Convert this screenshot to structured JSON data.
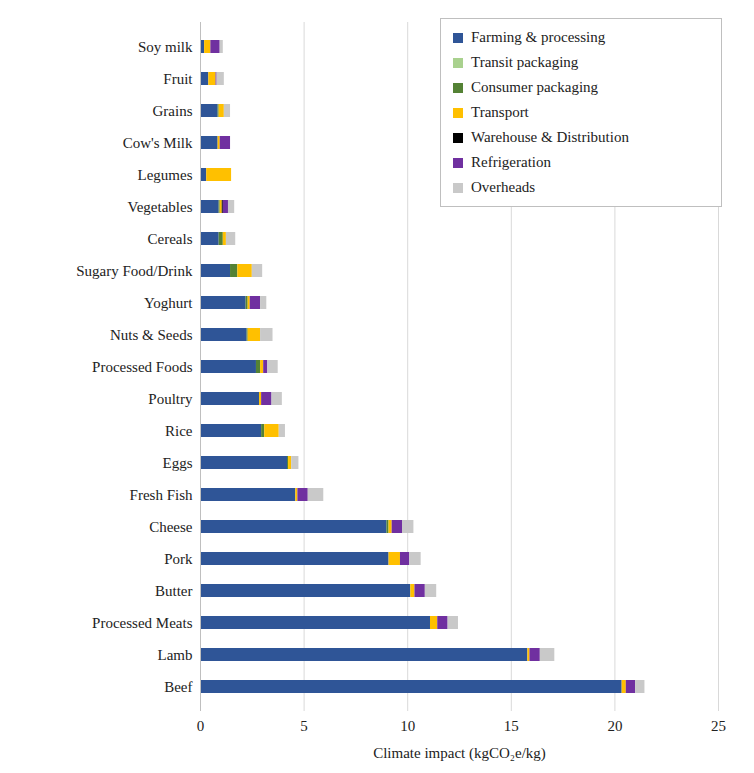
{
  "chart_data": {
    "type": "bar",
    "orientation": "horizontal",
    "stacked": true,
    "grid": true,
    "legend": "top-right",
    "x_label": "Climate impact (kgCO₂e/kg)",
    "xlim": [
      0,
      25
    ],
    "xticks": [
      0,
      5,
      10,
      15,
      20,
      25
    ],
    "categories": [
      "Soy milk",
      "Fruit",
      "Grains",
      "Cow's Milk",
      "Legumes",
      "Vegetables",
      "Cereals",
      "Sugary Food/Drink",
      "Yoghurt",
      "Nuts & Seeds",
      "Processed Foods",
      "Poultry",
      "Rice",
      "Eggs",
      "Fresh Fish",
      "Cheese",
      "Pork",
      "Butter",
      "Processed Meats",
      "Lamb",
      "Beef"
    ],
    "series": [
      {
        "name": "Farming & processing",
        "color": "#2f5597",
        "values": [
          0.2,
          0.4,
          0.85,
          0.85,
          0.3,
          0.9,
          0.9,
          1.45,
          2.2,
          2.25,
          2.7,
          2.85,
          2.95,
          4.2,
          4.6,
          9.0,
          9.1,
          10.15,
          11.1,
          15.8,
          20.35
        ]
      },
      {
        "name": "Transit packaging",
        "color": "#a9d18e",
        "values": [
          0,
          0,
          0,
          0,
          0,
          0,
          0,
          0,
          0,
          0,
          0,
          0,
          0,
          0,
          0,
          0,
          0,
          0,
          0,
          0,
          0
        ]
      },
      {
        "name": "Consumer packaging",
        "color": "#548235",
        "values": [
          0,
          0,
          0.05,
          0,
          0,
          0.05,
          0.2,
          0.35,
          0.1,
          0.05,
          0.2,
          0,
          0.15,
          0.05,
          0,
          0.1,
          0,
          0,
          0,
          0,
          0
        ]
      },
      {
        "name": "Transport",
        "color": "#ffc000",
        "values": [
          0.3,
          0.35,
          0.25,
          0.1,
          1.2,
          0.1,
          0.15,
          0.7,
          0.1,
          0.6,
          0.15,
          0.1,
          0.7,
          0.15,
          0.1,
          0.15,
          0.55,
          0.2,
          0.35,
          0.1,
          0.2
        ]
      },
      {
        "name": "Warehouse & Distribution",
        "color": "#000000",
        "values": [
          0,
          0,
          0,
          0,
          0,
          0.05,
          0,
          0,
          0,
          0,
          0,
          0,
          0,
          0,
          0,
          0,
          0,
          0,
          0,
          0,
          0
        ]
      },
      {
        "name": "Refrigeration",
        "color": "#7030a0",
        "values": [
          0.45,
          0.05,
          0,
          0.5,
          0,
          0.25,
          0,
          0,
          0.5,
          0,
          0.2,
          0.5,
          0,
          0,
          0.5,
          0.5,
          0.45,
          0.5,
          0.5,
          0.5,
          0.45
        ]
      },
      {
        "name": "Overheads",
        "color": "#c9c9c9",
        "values": [
          0.15,
          0.35,
          0.3,
          0,
          0,
          0.3,
          0.45,
          0.5,
          0.3,
          0.6,
          0.5,
          0.5,
          0.3,
          0.35,
          0.75,
          0.55,
          0.55,
          0.55,
          0.5,
          0.7,
          0.45
        ]
      }
    ]
  }
}
